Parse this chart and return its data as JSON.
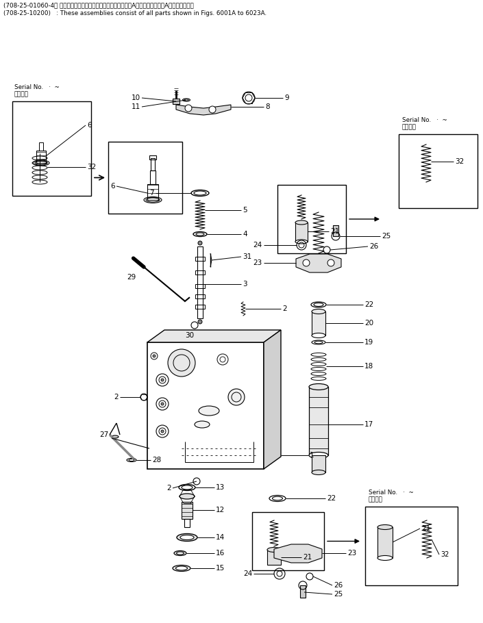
{
  "header_line1": "(708-25-01060-4： これらのアセンブリの構成部品は第６００１A図から第６０２３A図まで含みます",
  "header_line2": "(708-25-10200)   : These assemblies consist of all parts shown in Figs. 6001A to 6023A.",
  "bg_color": "#ffffff",
  "serial_ja": "適用号機",
  "serial_en": "Serial No.   ·  ~"
}
